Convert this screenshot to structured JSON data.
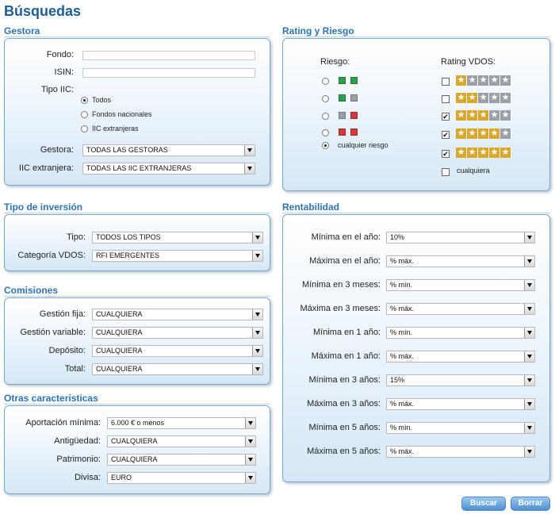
{
  "page": {
    "title": "Búsquedas"
  },
  "gestora": {
    "title": "Gestora",
    "fondo_label": "Fondo:",
    "fondo_value": "",
    "isin_label": "ISIN:",
    "isin_value": "",
    "tipo_iic_label": "Tipo IIC:",
    "tipo_iic_options": [
      {
        "label": "Todos",
        "selected": true
      },
      {
        "label": "Fondos nacionales",
        "selected": false
      },
      {
        "label": "IIC extranjeras",
        "selected": false
      }
    ],
    "gestora_label": "Gestora:",
    "gestora_value": "TODAS LAS GESTORAS",
    "iic_ext_label": "IIC extranjera:",
    "iic_ext_value": "TODAS LAS IIC EXTRANJERAS"
  },
  "rating": {
    "title": "Rating y Riesgo",
    "riesgo_label": "Riesgo:",
    "vdos_label": "Rating VDOS:",
    "riesgo_options": [
      {
        "colors": [
          "#2e9e4a",
          "#2e9e4a"
        ],
        "selected": false
      },
      {
        "colors": [
          "#2e9e4a",
          "#9aa0a6"
        ],
        "selected": false
      },
      {
        "colors": [
          "#9aa0a6",
          "#d23a3a"
        ],
        "selected": false
      },
      {
        "colors": [
          "#d23a3a",
          "#d23a3a"
        ],
        "selected": false
      }
    ],
    "riesgo_any_label": "cualquier riesgo",
    "riesgo_any_selected": true,
    "vdos_rows": [
      {
        "stars": 1,
        "checked": false
      },
      {
        "stars": 2,
        "checked": false
      },
      {
        "stars": 3,
        "checked": true
      },
      {
        "stars": 4,
        "checked": true
      },
      {
        "stars": 5,
        "checked": true
      }
    ],
    "vdos_any_label": "cualquiera",
    "vdos_any_checked": false,
    "colors": {
      "gold": "#d9a72b",
      "gray": "#9aa0a6"
    }
  },
  "tipo_inversion": {
    "title": "Tipo de inversión",
    "tipo_label": "Tipo:",
    "tipo_value": "TODOS LOS TIPOS",
    "categoria_label": "Categoría VDOS:",
    "categoria_value": "RFI EMERGENTES"
  },
  "comisiones": {
    "title": "Comisiones",
    "rows": [
      {
        "label": "Gestión fija:",
        "value": "CUALQUIERA"
      },
      {
        "label": "Gestión variable:",
        "value": "CUALQUIERA"
      },
      {
        "label": "Depósito:",
        "value": "CUALQUIERA"
      },
      {
        "label": "Total:",
        "value": "CUALQUIERA"
      }
    ]
  },
  "otras": {
    "title": "Otras caracteristicas",
    "rows": [
      {
        "label": "Aportación mínima:",
        "value": "6.000 € o menos"
      },
      {
        "label": "Antigüedad:",
        "value": "CUALQUIERA"
      },
      {
        "label": "Patrimonio:",
        "value": "CUALQUIERA"
      },
      {
        "label": "Divisa:",
        "value": "EURO"
      }
    ]
  },
  "rentabilidad": {
    "title": "Rentabilidad",
    "rows": [
      {
        "label": "Mínima en el año:",
        "value": "10%"
      },
      {
        "label": "Máxima en el año:",
        "value": "% máx."
      },
      {
        "label": "Mínima en 3 meses:",
        "value": "% mín."
      },
      {
        "label": "Máxima en 3 meses:",
        "value": "% máx."
      },
      {
        "label": "Mínima en 1 año:",
        "value": "% mín."
      },
      {
        "label": "Máxima en 1 año:",
        "value": "% máx."
      },
      {
        "label": "Mínima en 3 años:",
        "value": "15%"
      },
      {
        "label": "Máxima en 3 años:",
        "value": "% máx."
      },
      {
        "label": "Mínima en 5 años:",
        "value": "% mín."
      },
      {
        "label": "Máxima en 5 años:",
        "value": "% máx."
      }
    ]
  },
  "actions": {
    "search_label": "Buscar",
    "reset_label": "Borrar"
  }
}
